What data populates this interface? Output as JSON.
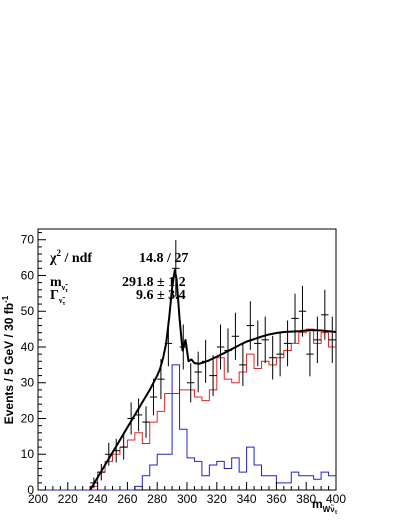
{
  "chart_data": {
    "type": "line",
    "xlabel": "m",
    "xlabel_sub": "Wν̃",
    "xlabel_subsub": "τ",
    "ylabel": "Events / 5 GeV / 30 fb",
    "ylabel_sup": "-1",
    "xlim": [
      200,
      400
    ],
    "ylim": [
      0,
      73
    ],
    "xticks": [
      200,
      220,
      240,
      260,
      280,
      300,
      320,
      340,
      360,
      380,
      400
    ],
    "yticks": [
      0,
      10,
      20,
      30,
      40,
      50,
      60,
      70
    ],
    "grid": false,
    "stats": {
      "chi2_label": "χ",
      "chi2_sup": "2",
      "chi2_rest": " / ndf",
      "chi2_value": "14.8 / 27",
      "mass_label": "m",
      "mass_sub": "ν̃",
      "mass_subsub": "τ",
      "mass_value": "291.8 ± 1.2",
      "width_label": "Γ",
      "width_sub": "ν̃",
      "width_subsub": "τ",
      "width_value": "9.6 ± 3.4"
    },
    "bin_edges": [
      200,
      205,
      210,
      215,
      220,
      225,
      230,
      235,
      240,
      245,
      250,
      255,
      260,
      265,
      270,
      275,
      280,
      285,
      290,
      295,
      300,
      305,
      310,
      315,
      320,
      325,
      330,
      335,
      340,
      345,
      350,
      355,
      360,
      365,
      370,
      375,
      380,
      385,
      390,
      395,
      400
    ],
    "series": [
      {
        "kind": "points",
        "color": "#000000",
        "x": [
          237.5,
          242.5,
          247.5,
          252.5,
          257.5,
          262.5,
          267.5,
          272.5,
          277.5,
          282.5,
          287.5,
          292.5,
          297.5,
          302.5,
          307.5,
          312.5,
          317.5,
          322.5,
          327.5,
          332.5,
          337.5,
          342.5,
          347.5,
          352.5,
          357.5,
          362.5,
          367.5,
          372.5,
          377.5,
          382.5,
          387.5,
          392.5,
          397.5
        ],
        "y": [
          2,
          5,
          10,
          11,
          12,
          20,
          21,
          19,
          26,
          31,
          41,
          62,
          40,
          30,
          33,
          36,
          32,
          40,
          39,
          43,
          35,
          46,
          41,
          42,
          37,
          38,
          41,
          48,
          50,
          38,
          42,
          49,
          42
        ],
        "yerr": [
          1.5,
          2.3,
          3.2,
          3.3,
          3.5,
          4.5,
          4.6,
          4.4,
          5.1,
          5.6,
          6.4,
          7.9,
          6.3,
          5.5,
          5.7,
          6,
          5.7,
          6.3,
          6.2,
          6.6,
          5.9,
          6.8,
          6.4,
          6.5,
          6.1,
          6.2,
          6.4,
          6.9,
          7.1,
          6.2,
          6.5,
          7,
          6.5
        ]
      },
      {
        "kind": "hist",
        "color": "#e82020",
        "values": [
          0,
          0,
          0,
          0,
          0,
          0,
          0,
          1,
          5,
          8,
          10,
          12,
          14,
          16,
          13,
          19,
          22,
          27,
          27,
          28,
          28,
          26,
          25,
          28,
          37,
          31,
          30,
          33,
          38,
          34,
          36,
          35,
          37,
          39,
          41,
          44,
          45,
          41,
          44,
          40
        ]
      },
      {
        "kind": "hist",
        "color": "#2020d0",
        "values": [
          0,
          0,
          0,
          0,
          0,
          0,
          0,
          0,
          0,
          0,
          0,
          0,
          0,
          1,
          4,
          7,
          10,
          10,
          35,
          17,
          9,
          8,
          4,
          7,
          8,
          6,
          9,
          5,
          12,
          7,
          4,
          4,
          2,
          2,
          5,
          4,
          4,
          3,
          5,
          4
        ]
      },
      {
        "kind": "fit",
        "color": "#000000",
        "x": [
          235,
          240,
          245,
          250,
          255,
          260,
          265,
          270,
          275,
          280,
          282,
          284,
          286,
          288,
          290,
          291.8,
          293,
          295,
          297,
          299,
          301,
          303,
          305,
          308,
          312,
          316,
          320,
          325,
          330,
          335,
          340,
          345,
          350,
          355,
          360,
          365,
          370,
          375,
          380,
          385,
          390,
          395,
          400
        ],
        "y": [
          0,
          3.5,
          7,
          10.5,
          14,
          17.5,
          21,
          24.5,
          28,
          32,
          34,
          37,
          41,
          48,
          56.5,
          61.5,
          59,
          48,
          39,
          42,
          36,
          36.5,
          35.5,
          35.3,
          35.8,
          36.5,
          37.3,
          38.3,
          39.4,
          40.5,
          41.5,
          42.2,
          42.9,
          43.5,
          43.9,
          44.2,
          44.3,
          44.4,
          44.6,
          44.7,
          44.6,
          44.4,
          44.2
        ]
      }
    ]
  }
}
